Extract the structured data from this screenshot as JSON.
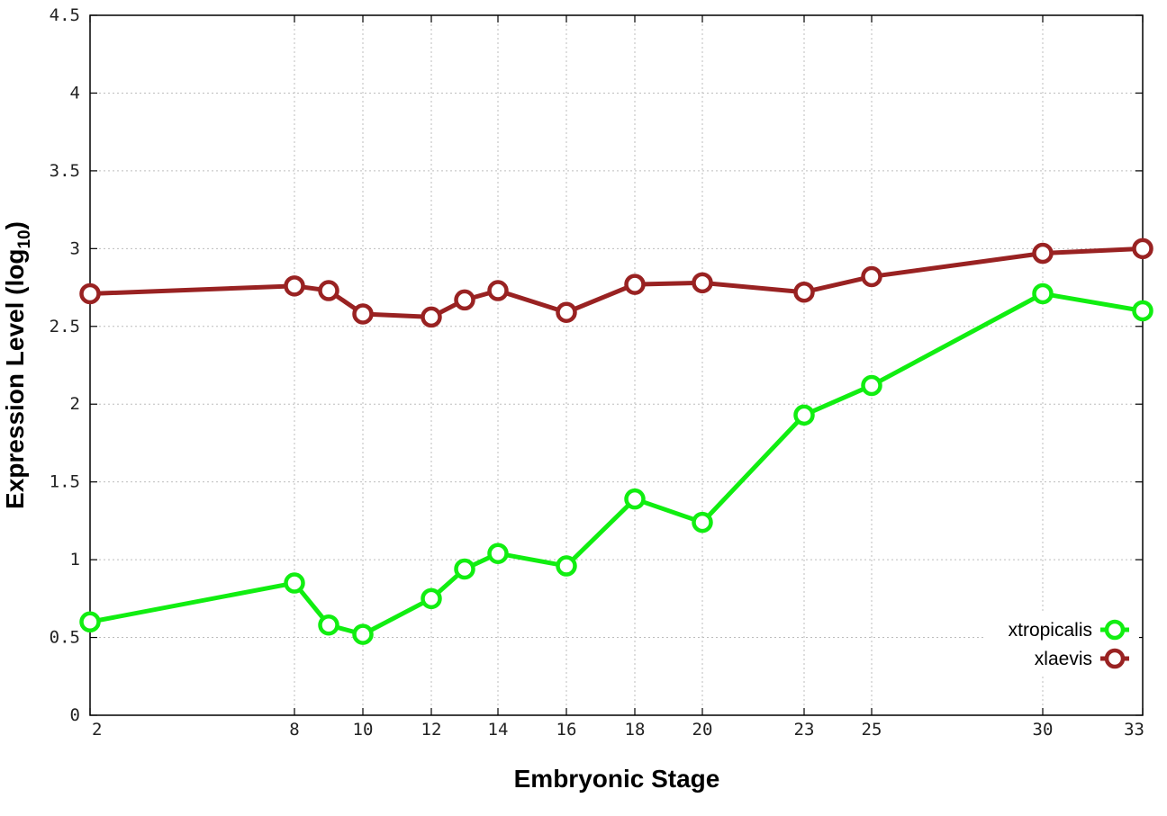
{
  "chart_data": {
    "type": "line",
    "xlabel": "Embryonic Stage",
    "ylabel_main": "Expression Level (log",
    "ylabel_sub": "10",
    "ylabel_close": ")",
    "x_scale": "stage-rank",
    "x": [
      2,
      8,
      9,
      10,
      12,
      13,
      14,
      16,
      18,
      20,
      23,
      25,
      30,
      33
    ],
    "x_tick_labels": [
      "2",
      "8",
      "10",
      "12",
      "14",
      "16",
      "18",
      "20",
      "23",
      "25",
      "30",
      "33"
    ],
    "y_ticks": [
      "0",
      "0.5",
      "1",
      "1.5",
      "2",
      "2.5",
      "3",
      "3.5",
      "4",
      "4.5"
    ],
    "ylim": [
      0,
      4.5
    ],
    "grid": true,
    "legend_position": "bottom-right",
    "series": [
      {
        "name": "xtropicalis",
        "color": "#11ee11",
        "values": [
          0.6,
          0.85,
          0.58,
          0.52,
          0.75,
          0.94,
          1.04,
          0.96,
          1.39,
          1.24,
          1.93,
          2.12,
          2.71,
          2.6
        ]
      },
      {
        "name": "xlaevis",
        "color": "#992222",
        "values": [
          2.71,
          2.76,
          2.73,
          2.58,
          2.56,
          2.67,
          2.73,
          2.59,
          2.77,
          2.78,
          2.72,
          2.82,
          2.97,
          3.0
        ]
      }
    ]
  }
}
